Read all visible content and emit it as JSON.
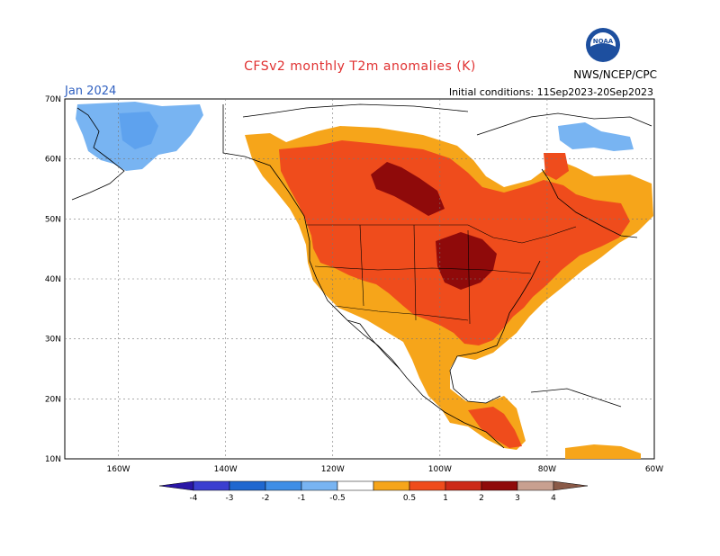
{
  "header": {
    "title": "CFSv2 monthly T2m anomalies (K)",
    "month": "Jan 2024",
    "initial_conditions": "Initial conditions: 11Sep2023-20Sep2023",
    "agency": "NWS/NCEP/CPC",
    "logo_text": "NOAA"
  },
  "map": {
    "lat_labels": [
      "70N",
      "60N",
      "50N",
      "40N",
      "30N",
      "20N",
      "10N"
    ],
    "lon_labels": [
      "160W",
      "140W",
      "120W",
      "100W",
      "80W",
      "60W"
    ],
    "extent": {
      "lon_min": -170,
      "lon_max": -60,
      "lat_min": 10,
      "lat_max": 70
    }
  },
  "colorbar": {
    "tick_labels": [
      "-4",
      "-3",
      "-2",
      "-1",
      "-0.5",
      "0.5",
      "1",
      "2",
      "3",
      "4"
    ],
    "colors": [
      "#2a16a6",
      "#3b3fd0",
      "#1f67cf",
      "#3f8ee6",
      "#78b4f2",
      "#ffffff",
      "#f6a51a",
      "#ef4c1c",
      "#cc2a18",
      "#8f0a0a",
      "#c8a090",
      "#8a5a48"
    ]
  },
  "anomaly_regions": [
    {
      "level": "cold-1",
      "label": "Alaska west -1 to -0.5",
      "color": "#78b4f2"
    },
    {
      "level": "cold-2",
      "label": "Eastern Canada -0.5",
      "color": "#78b4f2"
    },
    {
      "level": "warm-1",
      "label": "0.5 to 1",
      "color": "#f6a51a"
    },
    {
      "level": "warm-2",
      "label": "1 to 2",
      "color": "#ef4c1c"
    },
    {
      "level": "warm-3",
      "label": "2 to 3",
      "color": "#8f0a0a"
    }
  ]
}
